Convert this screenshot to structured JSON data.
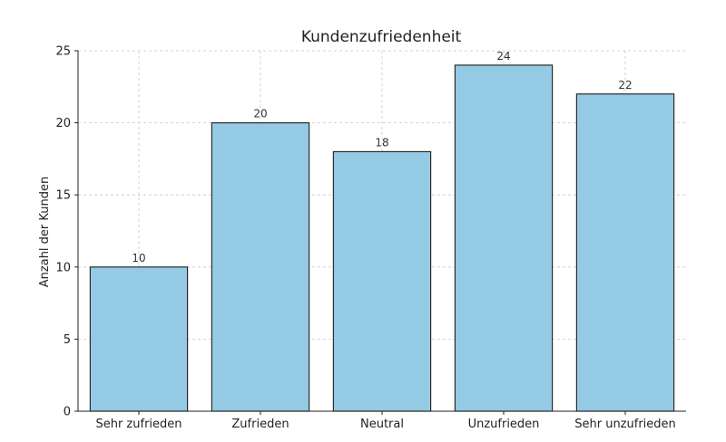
{
  "chart_data": {
    "type": "bar",
    "title": "Kundenzufriedenheit",
    "xlabel": "",
    "ylabel": "Anzahl der Kunden",
    "categories": [
      "Sehr zufrieden",
      "Zufrieden",
      "Neutral",
      "Unzufrieden",
      "Sehr unzufrieden"
    ],
    "values": [
      10,
      20,
      18,
      24,
      22
    ],
    "value_labels": [
      "10",
      "20",
      "18",
      "24",
      "22"
    ],
    "ylim": [
      0,
      25
    ],
    "yticks": [
      0,
      5,
      10,
      15,
      20,
      25
    ],
    "ytick_labels": [
      "0",
      "5",
      "10",
      "15",
      "20",
      "25"
    ],
    "grid": true,
    "bar_color": "#95cae4",
    "bar_edge_color": "#2b2b2b"
  }
}
